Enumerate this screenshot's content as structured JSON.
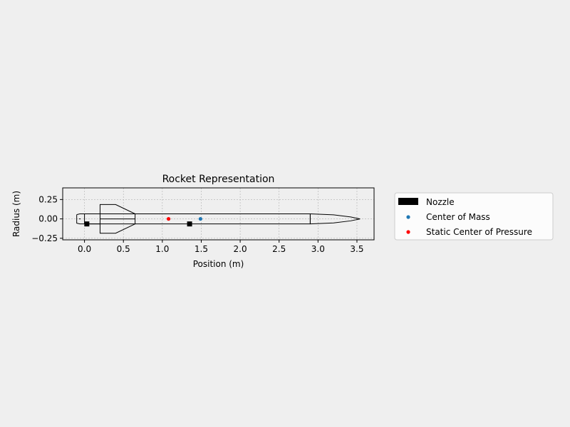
{
  "chart_data": {
    "type": "scatter",
    "title": "Rocket Representation",
    "xlabel": "Position (m)",
    "ylabel": "Radius (m)",
    "xlim": [
      -0.28,
      3.72
    ],
    "ylim": [
      -0.27,
      0.4
    ],
    "xticks": [
      0.0,
      0.5,
      1.0,
      1.5,
      2.0,
      2.5,
      3.0,
      3.5
    ],
    "xtick_labels": [
      "0.0",
      "0.5",
      "1.0",
      "1.5",
      "2.0",
      "2.5",
      "3.0",
      "3.5"
    ],
    "yticks": [
      -0.25,
      0.0,
      0.25
    ],
    "ytick_labels": [
      "−0.25",
      "0.00",
      "0.25"
    ],
    "grid": true,
    "legend_position": "outside-right",
    "colors": {
      "background": "#efefef",
      "plot_background": "#efefef",
      "outline": "#000000",
      "grid": "#b0b0b0",
      "center_of_mass": "#1f77b4",
      "center_of_pressure": "#ff0000",
      "nozzle": "#000000"
    },
    "series": [
      {
        "name": "Nozzle",
        "marker": "filled-rectangle",
        "color": "#000000"
      },
      {
        "name": "Center of Mass",
        "marker": "dot",
        "color": "#1f77b4",
        "points": [
          [
            1.49,
            0.0
          ]
        ]
      },
      {
        "name": "Static Center of Pressure",
        "marker": "dot",
        "color": "#ff0000",
        "points": [
          [
            1.08,
            0.0
          ]
        ]
      }
    ],
    "rocket_geometry": {
      "nozzle_outline": [
        [
          -0.1,
          0.055
        ],
        [
          -0.1,
          -0.055
        ],
        [
          -0.06,
          -0.065
        ],
        [
          0.0,
          -0.065
        ],
        [
          0.0,
          0.065
        ],
        [
          -0.06,
          0.065
        ],
        [
          -0.1,
          0.055
        ]
      ],
      "nozzle_inner": [
        [
          -0.07,
          0.0
        ],
        [
          -0.05,
          0.0
        ]
      ],
      "body_lower": [
        [
          0.0,
          0.065
        ],
        [
          0.2,
          0.065
        ],
        [
          0.2,
          -0.065
        ],
        [
          0.0,
          -0.065
        ]
      ],
      "tube": [
        [
          0.0,
          0.065
        ],
        [
          2.9,
          0.065
        ],
        [
          2.9,
          -0.065
        ],
        [
          0.0,
          -0.065
        ]
      ],
      "fin_top": [
        [
          0.2,
          0.065
        ],
        [
          0.2,
          0.185
        ],
        [
          0.4,
          0.185
        ],
        [
          0.65,
          0.065
        ]
      ],
      "fin_bottom": [
        [
          0.2,
          -0.065
        ],
        [
          0.2,
          -0.185
        ],
        [
          0.4,
          -0.185
        ],
        [
          0.65,
          -0.065
        ]
      ],
      "fin_centerline": [
        [
          0.2,
          0.0
        ],
        [
          0.65,
          0.0
        ]
      ],
      "nose_cone": [
        [
          2.9,
          0.065
        ],
        [
          3.2,
          0.052
        ],
        [
          3.42,
          0.025
        ],
        [
          3.54,
          0.0
        ],
        [
          3.42,
          -0.025
        ],
        [
          3.2,
          -0.052
        ],
        [
          2.9,
          -0.065
        ]
      ],
      "nose_joint": [
        [
          2.9,
          0.065
        ],
        [
          2.9,
          -0.065
        ]
      ],
      "tube_joint": [
        [
          0.65,
          0.065
        ],
        [
          0.65,
          -0.065
        ]
      ],
      "buttons": [
        [
          0.03,
          -0.065
        ],
        [
          1.35,
          -0.065
        ]
      ]
    }
  }
}
